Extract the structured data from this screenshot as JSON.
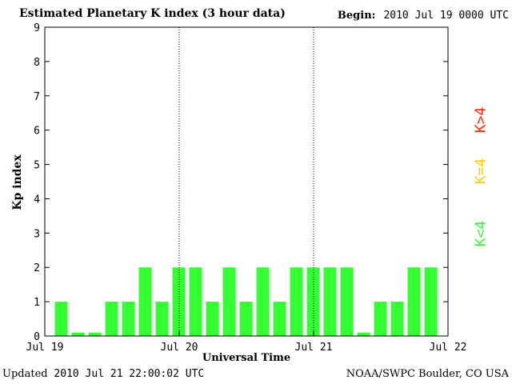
{
  "header": {
    "title": "Estimated Planetary K index (3 hour data)",
    "begin_label": "Begin:",
    "begin_value": "2010 Jul 19 0000 UTC"
  },
  "footer": {
    "updated_label": "Updated",
    "updated_value": "2010 Jul 21 22:00:02 UTC",
    "credit": "NOAA/SWPC Boulder, CO USA"
  },
  "legend": {
    "high": {
      "label": "K>4",
      "color": "#ff2a00"
    },
    "equal": {
      "label": "K=4",
      "color": "#ffcc00"
    },
    "low": {
      "label": "K<4",
      "color": "#33ff33"
    }
  },
  "chart_data": {
    "type": "bar",
    "xlabel": "Universal Time",
    "ylabel": "Kp index",
    "ylim": [
      0,
      9
    ],
    "yticks": [
      "0",
      "1",
      "2",
      "3",
      "4",
      "5",
      "6",
      "7",
      "8",
      "9"
    ],
    "xticks": [
      "Jul 19",
      "Jul 20",
      "Jul 21",
      "Jul 22"
    ],
    "day_separators": [
      "Jul 20",
      "Jul 21"
    ],
    "bar_color": "#33ff33",
    "series": [
      {
        "values": [
          1,
          0.1,
          0.1,
          1,
          1,
          2,
          1,
          2,
          2,
          1,
          2,
          1,
          2,
          1,
          2,
          2,
          2,
          2,
          0.1,
          1,
          1,
          2,
          2
        ]
      }
    ]
  }
}
